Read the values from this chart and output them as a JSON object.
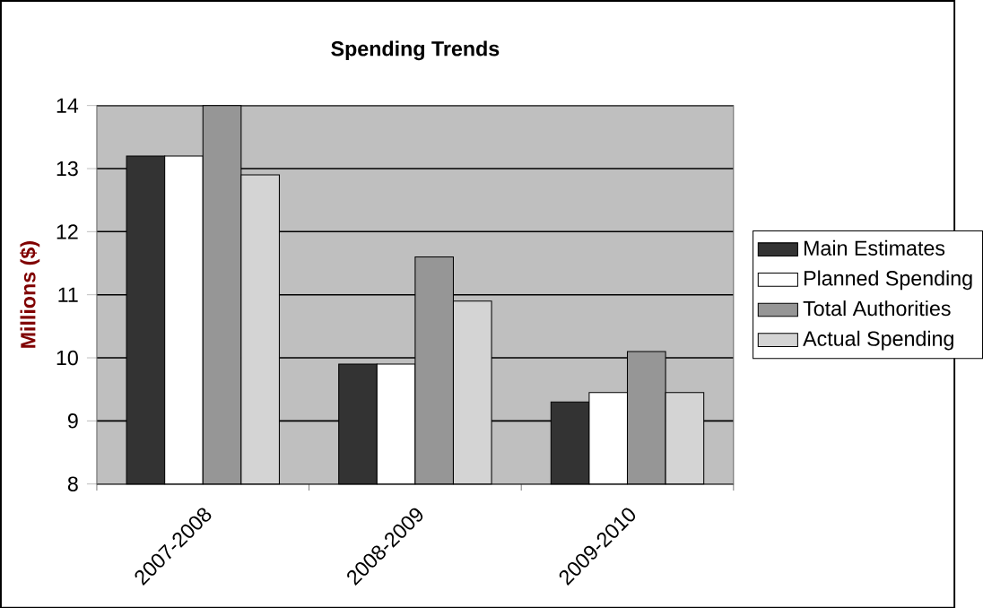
{
  "chart_data": {
    "type": "bar",
    "title": "Spending Trends",
    "ylabel": "Millions ($)",
    "categories": [
      "2007-2008",
      "2008-2009",
      "2009-2010"
    ],
    "series": [
      {
        "name": "Main Estimates",
        "color": "#333333",
        "values": [
          13.2,
          9.9,
          9.3
        ]
      },
      {
        "name": "Planned Spending",
        "color": "#ffffff",
        "values": [
          13.2,
          9.9,
          9.45
        ]
      },
      {
        "name": "Total Authorities",
        "color": "#969696",
        "values": [
          14.0,
          11.6,
          10.1
        ]
      },
      {
        "name": "Actual Spending",
        "color": "#d4d4d4",
        "values": [
          12.9,
          10.9,
          9.45
        ]
      }
    ],
    "ylim": [
      8,
      14
    ],
    "yticks": [
      8,
      9,
      10,
      11,
      12,
      13,
      14
    ],
    "grid": "y",
    "legend": "right"
  }
}
